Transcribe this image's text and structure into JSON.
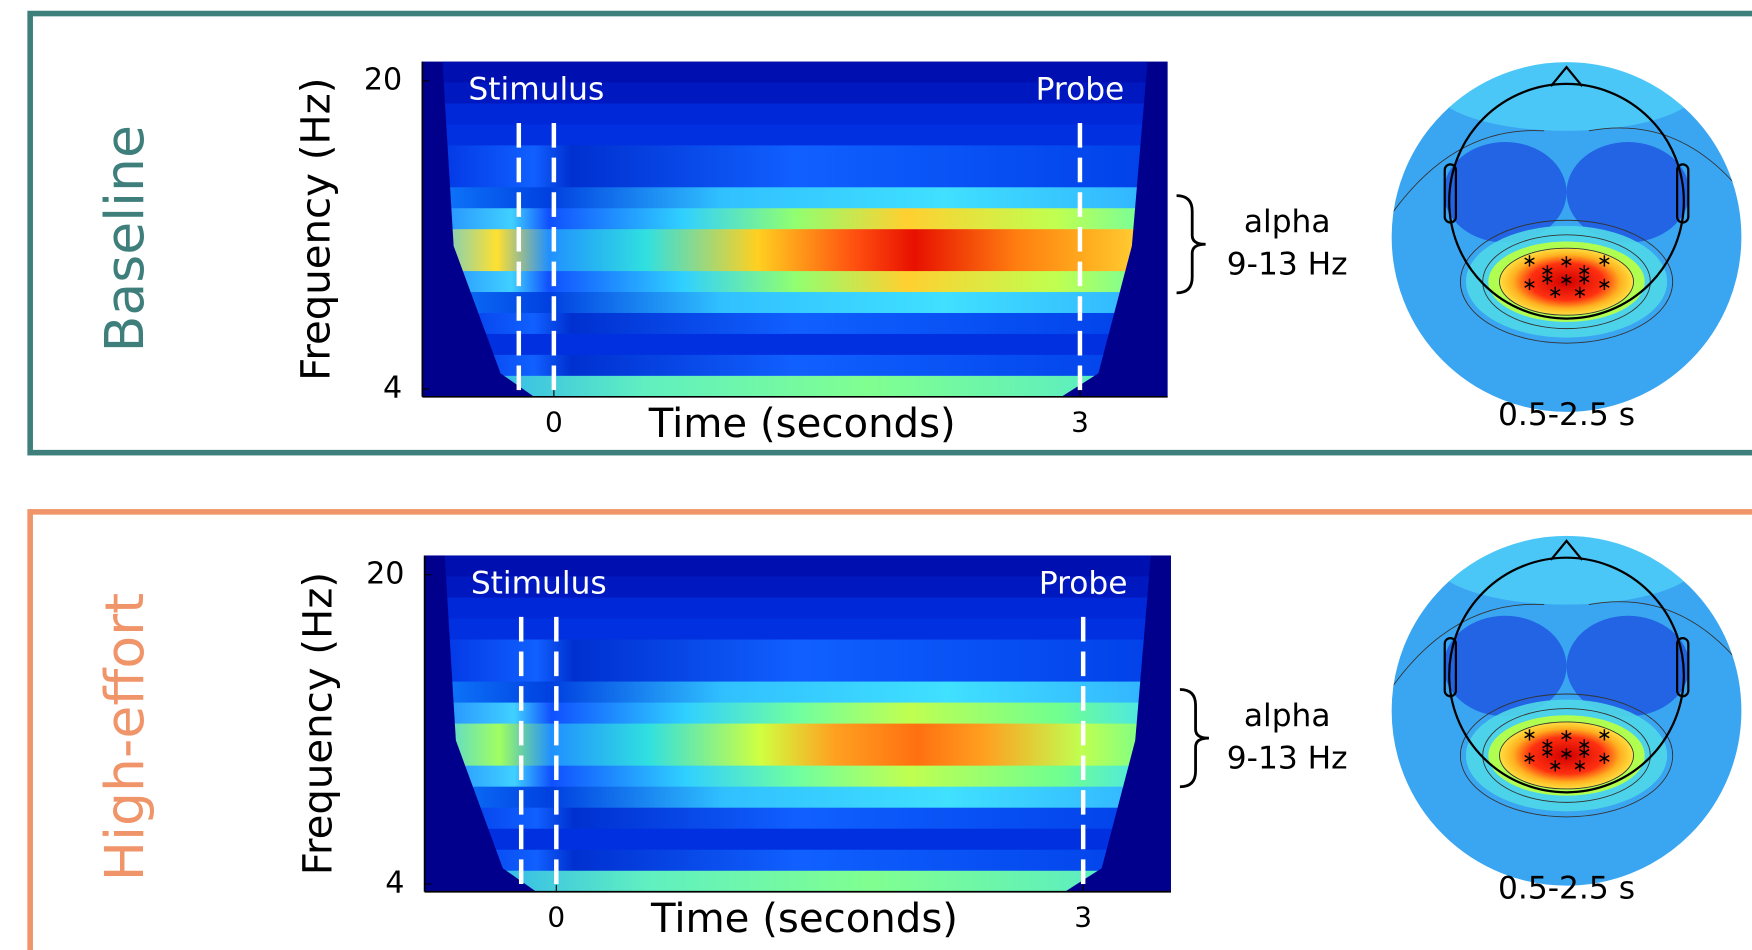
{
  "panels": [
    {
      "label": "Baseline",
      "color": "#3e7f7c",
      "spectrogram": {
        "type": "heatmap",
        "xlabel": "Time (seconds)",
        "ylabel": "Frequency (Hz)",
        "xlim": [
          -0.75,
          3.5
        ],
        "ylim": [
          3.6,
          21
        ],
        "xticks": [
          0,
          3
        ],
        "yticks": [
          20,
          4
        ],
        "events": [
          {
            "label": "Stimulus",
            "times": [
              -0.2,
              0
            ]
          },
          {
            "label": "Probe",
            "times": [
              3
            ]
          }
        ]
      },
      "band": {
        "name": "alpha",
        "range": "9-13 Hz"
      },
      "topo_window": "0.5-2.5 s"
    },
    {
      "label": "High-effort",
      "color": "#f0946a",
      "spectrogram": {
        "type": "heatmap",
        "xlabel": "Time (seconds)",
        "ylabel": "Frequency (Hz)",
        "xlim": [
          -0.75,
          3.5
        ],
        "ylim": [
          3.6,
          21
        ],
        "xticks": [
          0,
          3
        ],
        "yticks": [
          20,
          4
        ],
        "events": [
          {
            "label": "Stimulus",
            "times": [
              -0.2,
              0
            ]
          },
          {
            "label": "Probe",
            "times": [
              3
            ]
          }
        ]
      },
      "band": {
        "name": "alpha",
        "range": "9-13 Hz"
      },
      "topo_window": "0.5-2.5 s"
    }
  ]
}
